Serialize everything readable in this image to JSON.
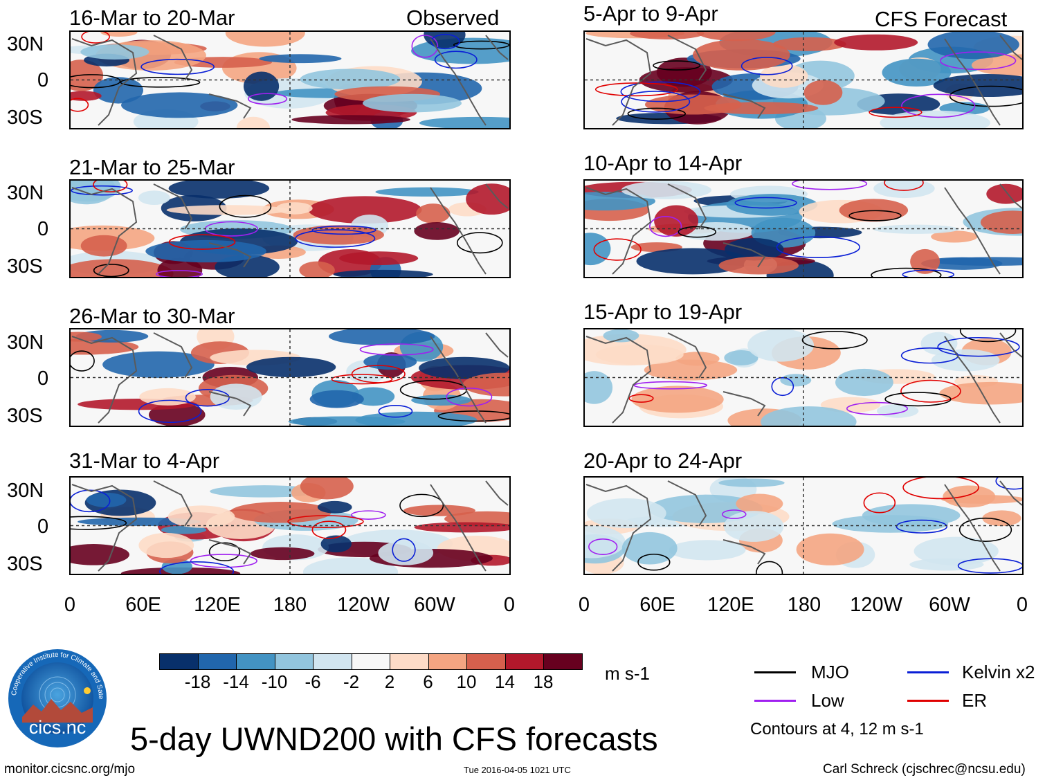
{
  "panels_observed": [
    {
      "period": "16-Mar to 20-Mar",
      "tag": "Observed"
    },
    {
      "period": "21-Mar to 25-Mar"
    },
    {
      "period": "26-Mar to 30-Mar"
    },
    {
      "period": "31-Mar to 4-Apr"
    }
  ],
  "panels_forecast": [
    {
      "period": "5-Apr to 9-Apr",
      "tag": "CFS Forecast"
    },
    {
      "period": "10-Apr to 14-Apr"
    },
    {
      "period": "15-Apr to 19-Apr"
    },
    {
      "period": "20-Apr to 24-Apr"
    }
  ],
  "lat_labels": [
    "30N",
    "0",
    "30S"
  ],
  "lon_labels": [
    "0",
    "60E",
    "120E",
    "180",
    "120W",
    "60W",
    "0"
  ],
  "colorbar": {
    "colors": [
      "#08306b",
      "#2166ac",
      "#4393c3",
      "#92c5de",
      "#d1e5f0",
      "#f7f7f7",
      "#fddbc7",
      "#f4a582",
      "#d6604d",
      "#b2182b",
      "#67001f"
    ],
    "labels": [
      "-18",
      "-14",
      "-10",
      "-6",
      "-2",
      "2",
      "6",
      "10",
      "14",
      "18"
    ],
    "units": "m s-1"
  },
  "legend": [
    {
      "label": "MJO",
      "color": "#000000"
    },
    {
      "label": "Kelvin x2",
      "color": "#0a1fd6"
    },
    {
      "label": "Low",
      "color": "#a020f0"
    },
    {
      "label": "ER",
      "color": "#e00000"
    }
  ],
  "contour_note": "Contours at 4, 12 m s-1",
  "logo_text": "cics.nc",
  "logo_ring_text": "Cooperative Institute for Climate and Satellites",
  "main_title": "5-day UWND200 with CFS forecasts",
  "footer": {
    "url": "monitor.cicsnc.org/mjo",
    "timestamp": "Tue 2016-04-05 1021 UTC",
    "author": "Carl Schreck (cjschrec@ncsu.edu)"
  }
}
